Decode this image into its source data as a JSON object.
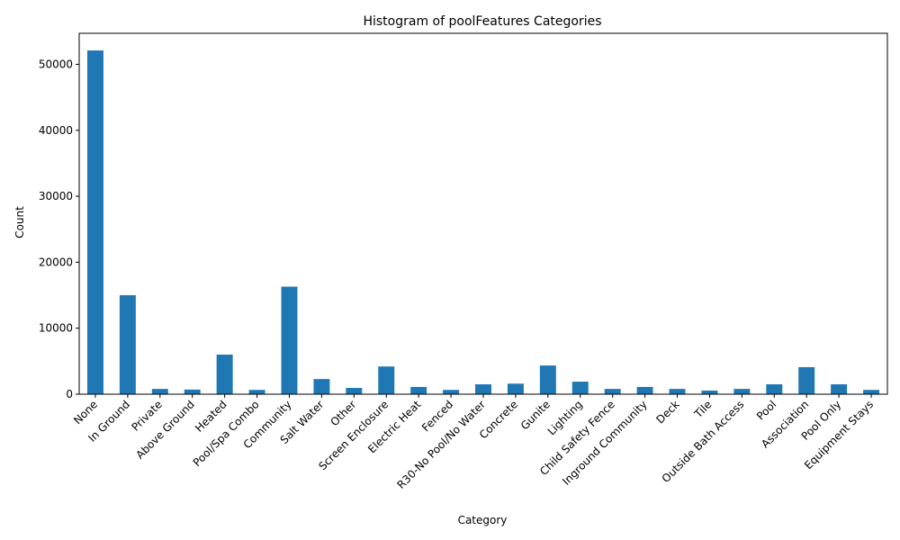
{
  "chart_data": {
    "type": "bar",
    "title": "Histogram of poolFeatures Categories",
    "xlabel": "Category",
    "ylabel": "Count",
    "categories": [
      "None",
      "In Ground",
      "Private",
      "Above Ground",
      "Heated",
      "Pool/Spa Combo",
      "Community",
      "Salt Water",
      "Other",
      "Screen Enclosure",
      "Electric Heat",
      "Fenced",
      "R30-No Pool/No Water",
      "Concrete",
      "Gunite",
      "Lighting",
      "Child Safety Fence",
      "Inground Community",
      "Deck",
      "Tile",
      "Outside Bath Access",
      "Pool",
      "Association",
      "Pool Only",
      "Equipment Stays"
    ],
    "values": [
      52100,
      15000,
      800,
      700,
      6000,
      650,
      16300,
      2300,
      950,
      4200,
      1100,
      650,
      1500,
      1600,
      4350,
      1900,
      800,
      1100,
      800,
      550,
      800,
      1500,
      4100,
      1500,
      650
    ],
    "ylim": [
      0,
      54700
    ],
    "yticks": [
      0,
      10000,
      20000,
      30000,
      40000,
      50000
    ],
    "color": "#1f77b4",
    "grid": false,
    "legend": "none"
  }
}
